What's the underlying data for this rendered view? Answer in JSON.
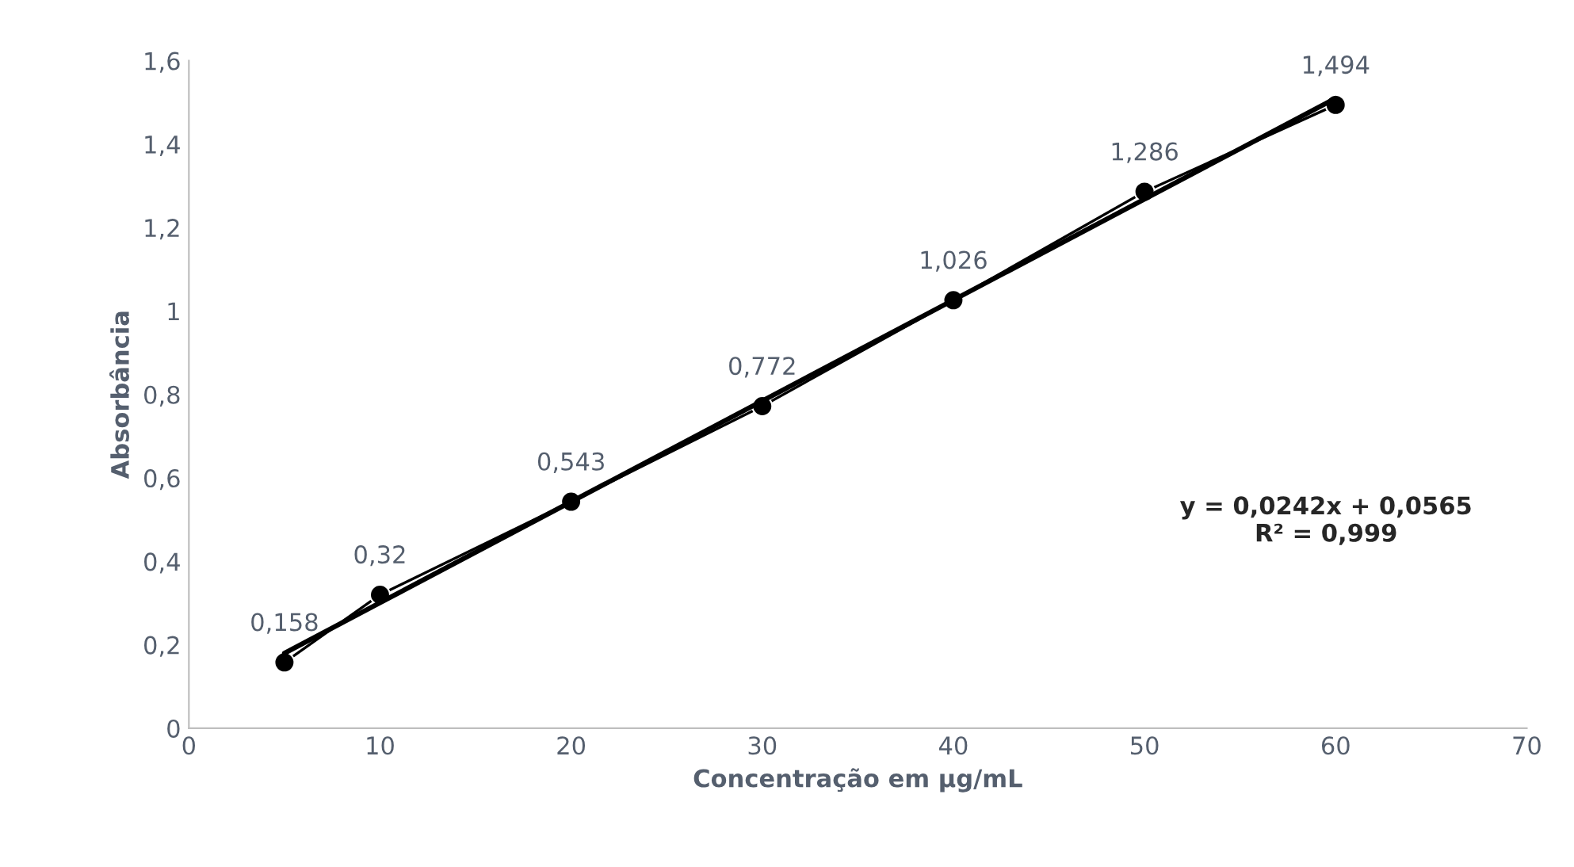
{
  "chart_data": {
    "type": "line",
    "xlabel": "Concentração em µg/mL",
    "ylabel": "Absorbância",
    "xlim": [
      0,
      70
    ],
    "xticks": [
      0,
      10,
      20,
      30,
      40,
      50,
      60,
      70
    ],
    "ylim": [
      0,
      1.6
    ],
    "yticks": [
      0,
      {
        "value": 0.2,
        "label": "0,2"
      },
      {
        "value": 0.4,
        "label": "0,4"
      },
      {
        "value": 0.6,
        "label": "0,6"
      },
      {
        "value": 0.8,
        "label": "0,8"
      },
      1,
      {
        "value": 1.2,
        "label": "1,2"
      },
      {
        "value": 1.4,
        "label": "1,4"
      },
      {
        "value": 1.6,
        "label": "1,6"
      }
    ],
    "grid": false,
    "legend": false,
    "series": [
      {
        "color": "#000000",
        "marker": "circle",
        "x": [
          5,
          10,
          20,
          30,
          40,
          50,
          60
        ],
        "values": [
          0.158,
          0.32,
          0.543,
          0.772,
          1.026,
          1.286,
          1.494
        ],
        "value_labels": [
          "0,158",
          "0,32",
          "0,543",
          "0,772",
          "1,026",
          "1,286",
          "1,494"
        ]
      },
      {
        "color": "#000000",
        "marker": "none",
        "x": [
          5,
          60
        ],
        "values": [
          0.18,
          1.51
        ]
      }
    ],
    "annotations": [
      "y = 0,0242x + 0,0565\nR² = 0,999"
    ]
  }
}
